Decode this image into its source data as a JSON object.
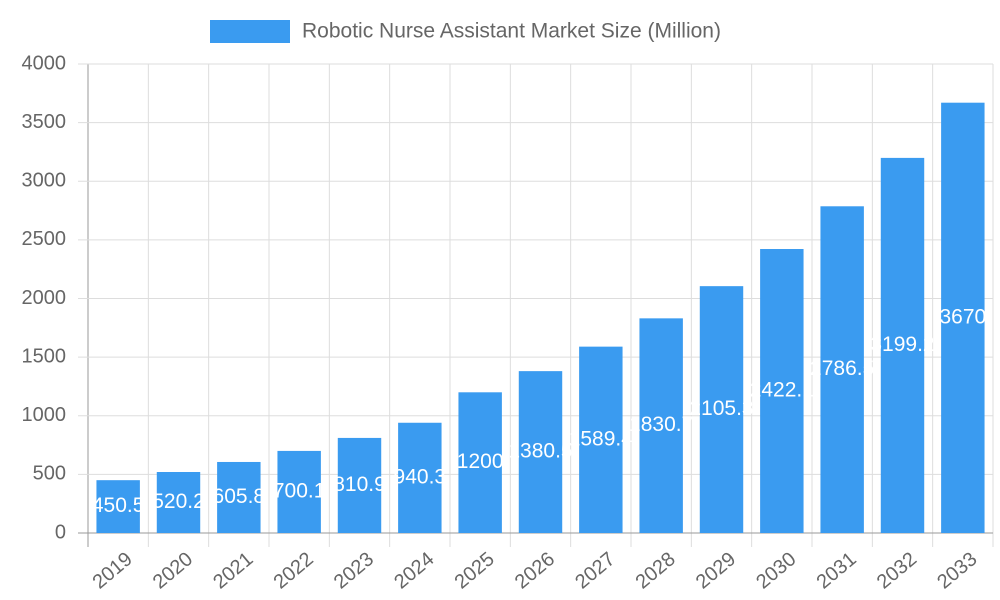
{
  "chart_data": {
    "type": "bar",
    "categories": [
      "2019",
      "2020",
      "2021",
      "2022",
      "2023",
      "2024",
      "2025",
      "2026",
      "2027",
      "2028",
      "2029",
      "2030",
      "2031",
      "2032",
      "2033"
    ],
    "series": [
      {
        "name": "Robotic Nurse Assistant Market Size (Million)",
        "color": "#3a9bf0",
        "values": [
          450.5,
          520.2,
          605.8,
          700.1,
          810.9,
          940.3,
          1200,
          1380.5,
          1589.4,
          1830.7,
          2105.3,
          2422.1,
          2786.5,
          3199.2,
          3670
        ]
      }
    ],
    "ylim": [
      0,
      4000
    ],
    "yticks": [
      0,
      500,
      1000,
      1500,
      2000,
      2500,
      3000,
      3500,
      4000
    ],
    "grid": true
  }
}
